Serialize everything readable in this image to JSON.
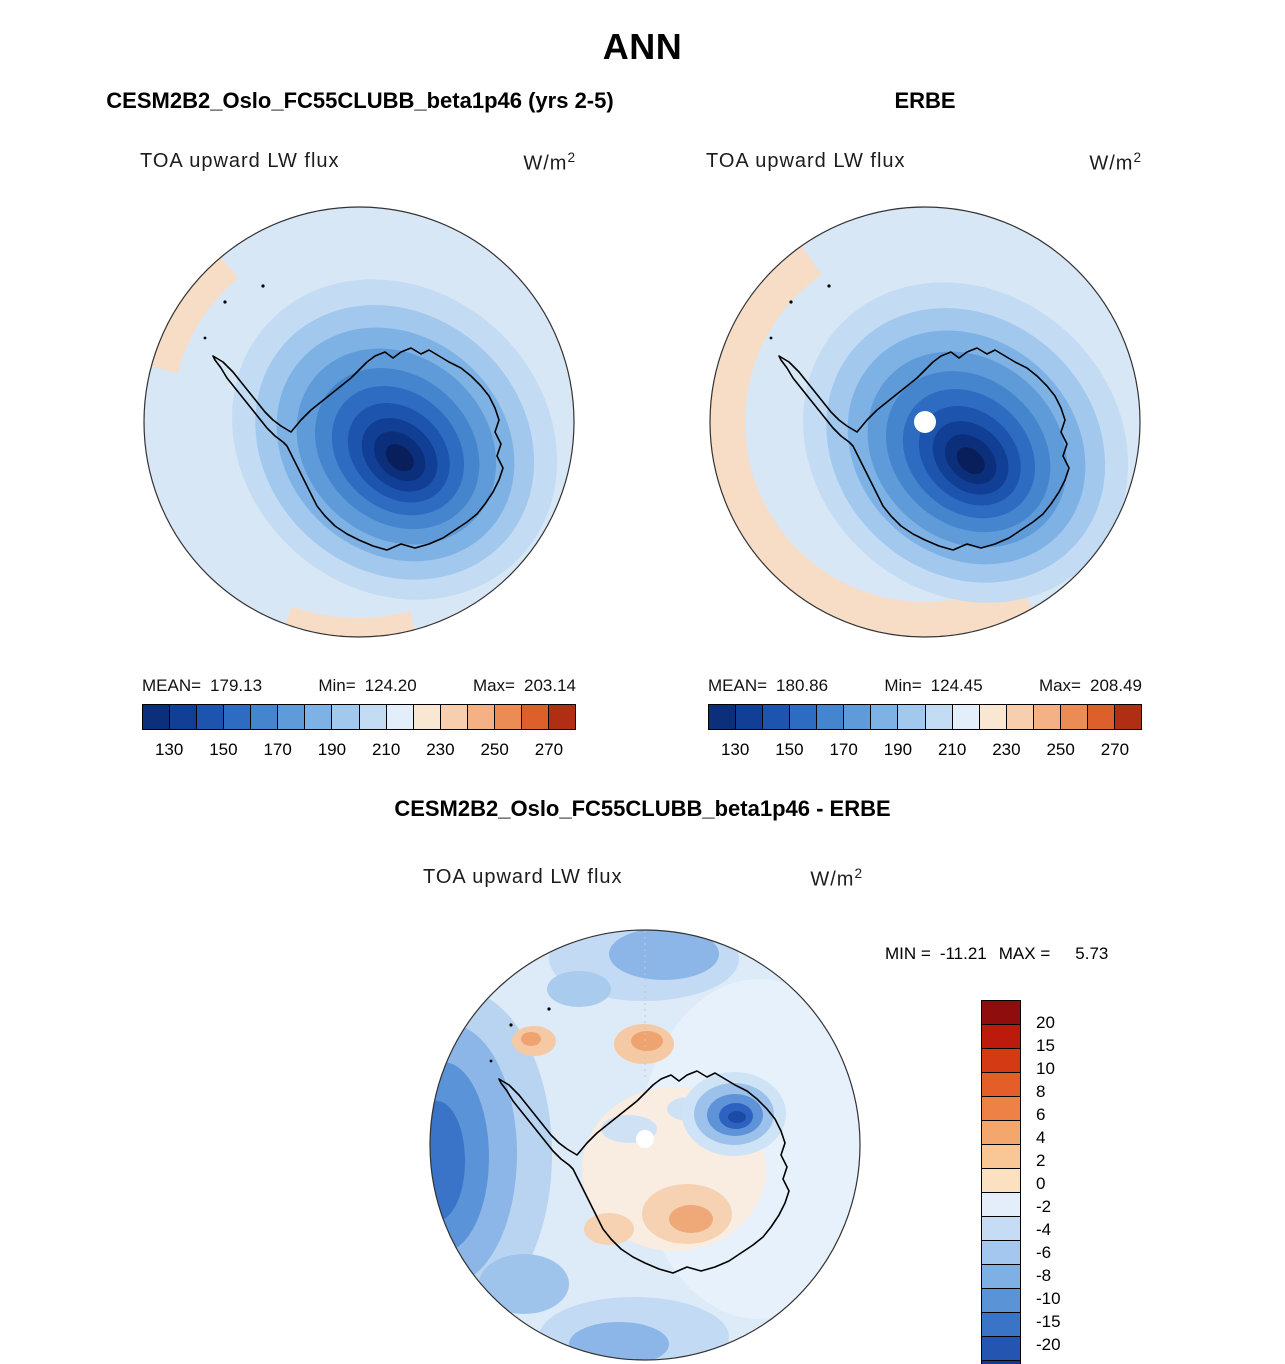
{
  "title": "ANN",
  "model_panel": {
    "header": "CESM2B2_Oslo_FC55CLUBB_beta1p46 (yrs 2-5)",
    "field_label": "TOA upward LW flux",
    "units_base": "W/m",
    "units_exponent": "2",
    "mean_label": "MEAN=",
    "mean_value": "179.13",
    "min_label": "Min=",
    "min_value": "124.20",
    "max_label": "Max=",
    "max_value": "203.14"
  },
  "obs_panel": {
    "header": "ERBE",
    "field_label": "TOA upward LW flux",
    "units_base": "W/m",
    "units_exponent": "2",
    "mean_label": "MEAN=",
    "mean_value": "180.86",
    "min_label": "Min=",
    "min_value": "124.45",
    "max_label": "Max=",
    "max_value": "208.49"
  },
  "diff_panel": {
    "header": "CESM2B2_Oslo_FC55CLUBB_beta1p46 - ERBE",
    "field_label": "TOA upward LW flux",
    "units_base": "W/m",
    "units_exponent": "2",
    "min_label": "MIN =",
    "min_value": "-11.21",
    "max_label": "MAX =",
    "max_value": "5.73"
  },
  "flux_colorbar": {
    "tick_labels": [
      "130",
      "150",
      "170",
      "190",
      "210",
      "230",
      "250",
      "270"
    ],
    "colors": [
      "#0b2f7a",
      "#123f96",
      "#1d55ae",
      "#2d6cc0",
      "#4585cd",
      "#5f9bd9",
      "#7fb2e4",
      "#a2c8ee",
      "#c3dcf4",
      "#e2eefa",
      "#f9e7d4",
      "#f7cfae",
      "#f3b185",
      "#ec8c55",
      "#dd5f2b",
      "#b02f14"
    ]
  },
  "diff_colorbar": {
    "labels": [
      "20",
      "15",
      "10",
      "8",
      "6",
      "4",
      "2",
      "0",
      "-2",
      "-4",
      "-6",
      "-8",
      "-10",
      "-15",
      "-20"
    ],
    "colors": [
      "#8f0d0d",
      "#bb1a0c",
      "#d43a14",
      "#e55d28",
      "#ee8246",
      "#f4a76c",
      "#f9c795",
      "#fce0c2",
      "#e4eefa",
      "#c6dcf4",
      "#a3c7ee",
      "#7fb0e3",
      "#5a93d6",
      "#3a74c6",
      "#2455b0",
      "#123a8e"
    ]
  },
  "chart_data": [
    {
      "type": "heatmap",
      "subtype": "polar_stereographic_contour_map",
      "panel": "top-left",
      "title": "CESM2B2_Oslo_FC55CLUBB_beta1p46 (yrs 2-5)",
      "season": "ANN",
      "variable": "TOA upward LW flux",
      "units": "W/m^2",
      "region": "Southern Hemisphere polar cap (Antarctica)",
      "stats": {
        "mean": 179.13,
        "min": 124.2,
        "max": 203.14
      },
      "contour_levels": [
        130,
        140,
        150,
        160,
        170,
        180,
        190,
        200,
        210,
        220,
        230,
        240,
        250,
        260,
        270
      ],
      "colorbar_tick_labels": [
        130,
        150,
        170,
        190,
        210,
        230,
        250,
        270
      ],
      "palette": "blue-white-red diverging",
      "legend_position": "below"
    },
    {
      "type": "heatmap",
      "subtype": "polar_stereographic_contour_map",
      "panel": "top-right",
      "title": "ERBE",
      "season": "ANN",
      "variable": "TOA upward LW flux",
      "units": "W/m^2",
      "region": "Southern Hemisphere polar cap (Antarctica)",
      "stats": {
        "mean": 180.86,
        "min": 124.45,
        "max": 208.49
      },
      "contour_levels": [
        130,
        140,
        150,
        160,
        170,
        180,
        190,
        200,
        210,
        220,
        230,
        240,
        250,
        260,
        270
      ],
      "colorbar_tick_labels": [
        130,
        150,
        170,
        190,
        210,
        230,
        250,
        270
      ],
      "palette": "blue-white-red diverging",
      "legend_position": "below"
    },
    {
      "type": "heatmap",
      "subtype": "polar_stereographic_contour_map",
      "panel": "bottom",
      "title": "CESM2B2_Oslo_FC55CLUBB_beta1p46 - ERBE",
      "season": "ANN",
      "variable": "TOA upward LW flux difference",
      "units": "W/m^2",
      "region": "Southern Hemisphere polar cap (Antarctica)",
      "stats": {
        "min": -11.21,
        "max": 5.73
      },
      "contour_levels": [
        -20,
        -15,
        -10,
        -8,
        -6,
        -4,
        -2,
        0,
        2,
        4,
        6,
        8,
        10,
        15,
        20
      ],
      "palette": "red-white-blue diverging (positive red at top of legend)",
      "legend_position": "right"
    }
  ]
}
